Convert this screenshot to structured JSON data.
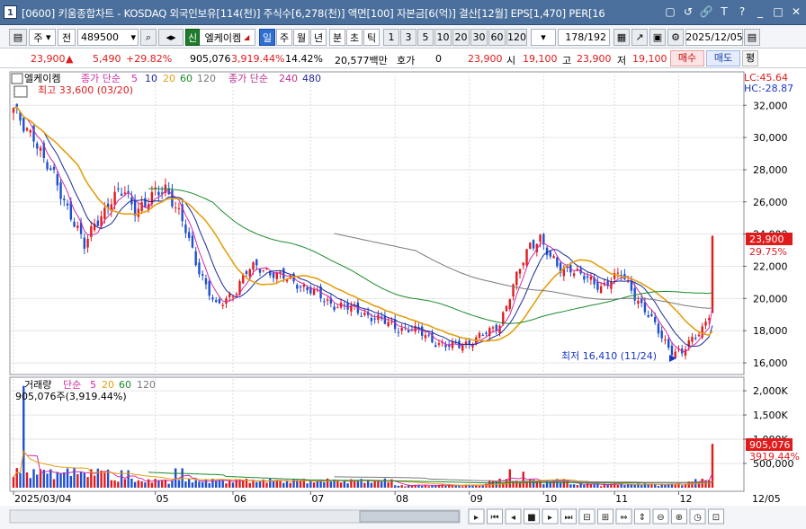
{
  "window": {
    "number": "1",
    "title": "[0600] 키움종합차트 - KOSDAQ 외국인보유[114(천)] 주식수[6,278(천)] 액면[100] 자본금[6(억)] 결산[12월] EPS[1,470] PER[16",
    "controls": [
      "▢",
      "↺",
      "🔗",
      "T",
      "?",
      "_",
      "□",
      "✕"
    ]
  },
  "toolbar": {
    "period_unit": "주",
    "compare": "전",
    "code": "489500",
    "badge": "신",
    "stock_name": "엘케이켐",
    "period_buttons": [
      "일",
      "주",
      "월",
      "년",
      "분",
      "초",
      "틱"
    ],
    "active_period": "일",
    "interval_buttons": [
      "1",
      "3",
      "5",
      "10",
      "20",
      "30",
      "60",
      "120"
    ],
    "bar_count": "178",
    "bar_total": "/192",
    "date": "2025/12/05"
  },
  "quote": {
    "price": "23,900",
    "change_arrow": "▲",
    "change": "5,490",
    "change_pct": "+29.82%",
    "volume": "905,076",
    "volume_ratio": "3,919.44%",
    "turnover_pct": "14.42%",
    "amount": "20,577백만",
    "hoga_label": "호가",
    "hoga_value": "0",
    "ask": "23,900",
    "open_label": "시",
    "open": "19,100",
    "high_label": "고",
    "high": "23,900",
    "low_label": "저",
    "low": "19,100",
    "buy_label": "매수",
    "sell_label": "매도",
    "flat_label": "평"
  },
  "price_chart": {
    "legend_name": "엘케이켐",
    "legend_ma": "종가 단순",
    "ma_periods_short": [
      "5",
      "10",
      "20",
      "60",
      "120"
    ],
    "ma_colors": [
      "#d02aa5",
      "#1a2a9a",
      "#e3a010",
      "#1a8a2a",
      "#7a7a7a"
    ],
    "legend_ma2": "종가 단순",
    "ma_periods_long": [
      "240",
      "480"
    ],
    "ma_long_colors": [
      "#c03090",
      "#2a2a9a"
    ],
    "high_note": "최고 33,600 (03/20)",
    "low_note": "최저 16,410 (11/24)",
    "lc_label": "LC:45.64",
    "hc_label": "HC:-28.87",
    "current_price_tag": "23,900",
    "current_pct_tag": "29.75%"
  },
  "volume_chart": {
    "legend_name": "거래량",
    "legend_ma": "단순",
    "ma_periods": [
      "5",
      "20",
      "60",
      "120"
    ],
    "ma_colors": [
      "#d02aa5",
      "#e3a010",
      "#1a8a2a",
      "#7a7a7a"
    ],
    "value_note": "905,076주(3,919.44%)",
    "current_volume_tag": "905,076",
    "current_pct_tag": "3919.44%"
  },
  "x_axis": [
    "2025/03/04",
    "05",
    "06",
    "07",
    "08",
    "09",
    "10",
    "11",
    "12",
    "12/05"
  ],
  "chart_data": [
    {
      "type": "candlestick",
      "title": "엘케이켐",
      "y_ticks": [
        "32,000",
        "30,000",
        "28,000",
        "26,000",
        "24,000",
        "22,000",
        "20,000",
        "18,000",
        "16,000"
      ],
      "ylim": [
        15500,
        33800
      ],
      "up_color": "#e01b1b",
      "down_color": "#1f4fd0",
      "months": [
        "2025/03",
        "2025/04",
        "2025/05",
        "2025/06",
        "2025/07",
        "2025/08",
        "2025/09",
        "2025/10",
        "2025/11",
        "2025/12"
      ],
      "close_path": [
        [
          0,
          31600
        ],
        [
          3,
          30800
        ],
        [
          6,
          30200
        ],
        [
          9,
          28400
        ],
        [
          12,
          27600
        ],
        [
          15,
          26200
        ],
        [
          18,
          24600
        ],
        [
          21,
          23200
        ],
        [
          24,
          24800
        ],
        [
          27,
          25400
        ],
        [
          30,
          26200
        ],
        [
          33,
          26800
        ],
        [
          36,
          25600
        ],
        [
          39,
          25600
        ],
        [
          42,
          26600
        ],
        [
          45,
          27000
        ],
        [
          48,
          25600
        ],
        [
          51,
          24200
        ],
        [
          54,
          22400
        ],
        [
          57,
          20800
        ],
        [
          60,
          19400
        ],
        [
          63,
          20000
        ],
        [
          66,
          20600
        ],
        [
          69,
          21600
        ],
        [
          72,
          22000
        ],
        [
          75,
          21800
        ],
        [
          78,
          21400
        ],
        [
          81,
          21200
        ],
        [
          84,
          21000
        ],
        [
          87,
          20600
        ],
        [
          90,
          20200
        ],
        [
          93,
          19800
        ],
        [
          96,
          19600
        ],
        [
          99,
          19400
        ],
        [
          102,
          19200
        ],
        [
          105,
          19000
        ],
        [
          108,
          18700
        ],
        [
          111,
          18400
        ],
        [
          114,
          18200
        ],
        [
          117,
          18100
        ],
        [
          120,
          17900
        ],
        [
          123,
          17600
        ],
        [
          126,
          17200
        ],
        [
          129,
          17000
        ],
        [
          132,
          17100
        ],
        [
          135,
          17300
        ],
        [
          138,
          17600
        ],
        [
          141,
          17900
        ],
        [
          144,
          18500
        ],
        [
          147,
          20200
        ],
        [
          150,
          21800
        ],
        [
          153,
          23400
        ],
        [
          156,
          23800
        ],
        [
          159,
          22400
        ],
        [
          162,
          21800
        ],
        [
          165,
          22000
        ],
        [
          168,
          21400
        ],
        [
          171,
          21000
        ],
        [
          174,
          20800
        ],
        [
          177,
          21200
        ],
        [
          180,
          21400
        ],
        [
          183,
          20600
        ],
        [
          186,
          19600
        ],
        [
          189,
          18600
        ],
        [
          192,
          17600
        ],
        [
          195,
          16800
        ],
        [
          198,
          16600
        ],
        [
          201,
          17400
        ],
        [
          204,
          18200
        ],
        [
          206,
          19100
        ],
        [
          207,
          23900
        ]
      ],
      "last": {
        "date": "2025/12/05",
        "open": 19100,
        "high": 23900,
        "low": 19100,
        "close": 23900
      }
    },
    {
      "type": "bar",
      "title": "거래량",
      "y_ticks": [
        "2,000K",
        "1,500K",
        "1,000K",
        "500,000"
      ],
      "ylim": [
        0,
        2150000
      ],
      "last_value": 905076
    }
  ]
}
